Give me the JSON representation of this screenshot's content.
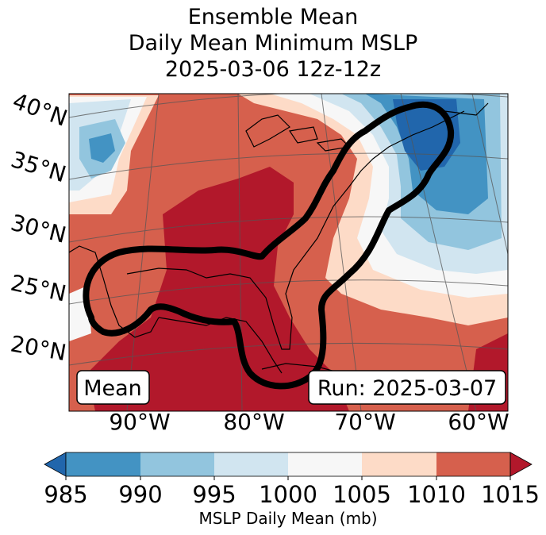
{
  "title": {
    "line1": "Ensemble Mean",
    "line2": "Daily Mean Minimum MSLP",
    "line3": "2025-03-06 12z-12z"
  },
  "map": {
    "lat_labels": [
      "40°N",
      "35°N",
      "30°N",
      "25°N",
      "20°N"
    ],
    "lon_labels": [
      "90°W",
      "80°W",
      "70°W",
      "60°W"
    ],
    "mean_box": "Mean",
    "run_box": "Run: 2025-03-07",
    "contour_description": "ensemble mean contour outline"
  },
  "colorbar": {
    "ticks": [
      "985",
      "990",
      "995",
      "1000",
      "1005",
      "1010",
      "1015"
    ],
    "label": "MSLP Daily Mean (mb)",
    "colors": {
      "under": "#2166ac",
      "c985_990": "#4393c3",
      "c990_995": "#92c5de",
      "c995_1000": "#d1e5f0",
      "c1000_1005": "#f7f7f7",
      "c1005_1010": "#fddbc7",
      "c1010_1015": "#d6604d",
      "over": "#b2182b"
    }
  }
}
